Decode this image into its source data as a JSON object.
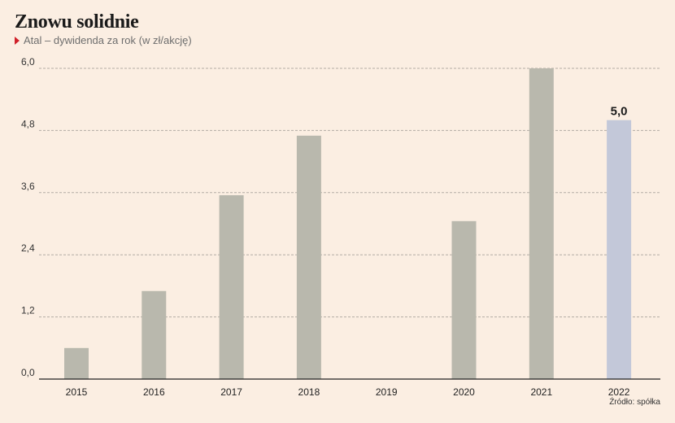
{
  "title": "Znowu solidnie",
  "subtitle": "Atal – dywidenda za rok (w zł/akcję)",
  "source": "Źródło: spółka",
  "colors": {
    "bar": "#b9b8ad",
    "highlight": "#c3c8d9",
    "grid": "#b3aca4",
    "axis": "#222222",
    "marker": "#d0202a"
  },
  "chart_data": {
    "type": "bar",
    "categories": [
      "2015",
      "2016",
      "2017",
      "2018",
      "2019",
      "2020",
      "2021",
      "2022"
    ],
    "values": [
      0.6,
      1.7,
      3.55,
      4.7,
      null,
      3.05,
      6.0,
      5.0
    ],
    "ylim": [
      0,
      6.0
    ],
    "yticks": [
      "0,0",
      "1,2",
      "2,4",
      "3,6",
      "4,8",
      "6,0"
    ],
    "highlight_index": 7,
    "data_labels": [
      {
        "index": 7,
        "text": "5,0"
      }
    ],
    "grid": true,
    "title": "Znowu solidnie",
    "xlabel": "",
    "ylabel": ""
  }
}
